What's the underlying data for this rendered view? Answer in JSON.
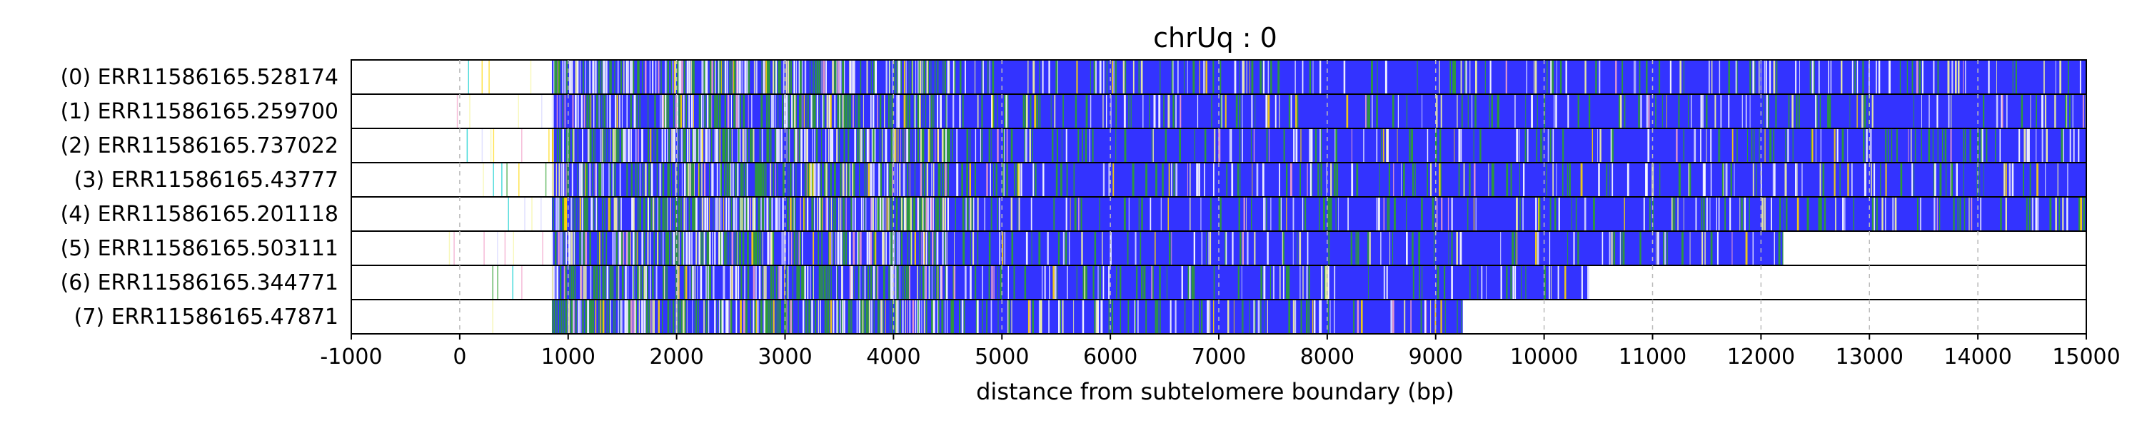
{
  "chart_data": {
    "type": "heatmap",
    "title": "chrUq : 0",
    "xlabel": "distance from subtelomere boundary (bp)",
    "ylabel": "",
    "xlim": [
      -1000,
      15000
    ],
    "xticks": [
      -1000,
      0,
      1000,
      2000,
      3000,
      4000,
      5000,
      6000,
      7000,
      8000,
      9000,
      10000,
      11000,
      12000,
      13000,
      14000,
      15000
    ],
    "xtick_labels": [
      "-1000",
      "0",
      "1000",
      "2000",
      "3000",
      "4000",
      "5000",
      "6000",
      "7000",
      "8000",
      "9000",
      "10000",
      "11000",
      "12000",
      "13000",
      "14000",
      "15000"
    ],
    "grid": "vertical dashed at x ticks",
    "base_color": "#3333ff",
    "accent_colors": [
      "#2ca02c",
      "#f5f5a0",
      "#ffffff",
      "#d6d6ff",
      "#f2a0c8",
      "#ffd700",
      "#00cccc"
    ],
    "reads": [
      {
        "label": "(0) ERR11586165.528174",
        "start": -100,
        "dense_start": 850,
        "end": 15000
      },
      {
        "label": "(1) ERR11586165.259700",
        "start": -100,
        "dense_start": 850,
        "end": 15000
      },
      {
        "label": "(2) ERR11586165.737022",
        "start": -100,
        "dense_start": 850,
        "end": 15000
      },
      {
        "label": "(3) ERR11586165.43777",
        "start": -100,
        "dense_start": 850,
        "end": 15000
      },
      {
        "label": "(4) ERR11586165.201118",
        "start": 400,
        "dense_start": 850,
        "end": 15000
      },
      {
        "label": "(5) ERR11586165.503111",
        "start": -100,
        "dense_start": 850,
        "end": 12200
      },
      {
        "label": "(6) ERR11586165.344771",
        "start": 300,
        "dense_start": 850,
        "end": 10400
      },
      {
        "label": "(7) ERR11586165.47871",
        "start": 300,
        "dense_start": 850,
        "end": 9250
      }
    ]
  }
}
